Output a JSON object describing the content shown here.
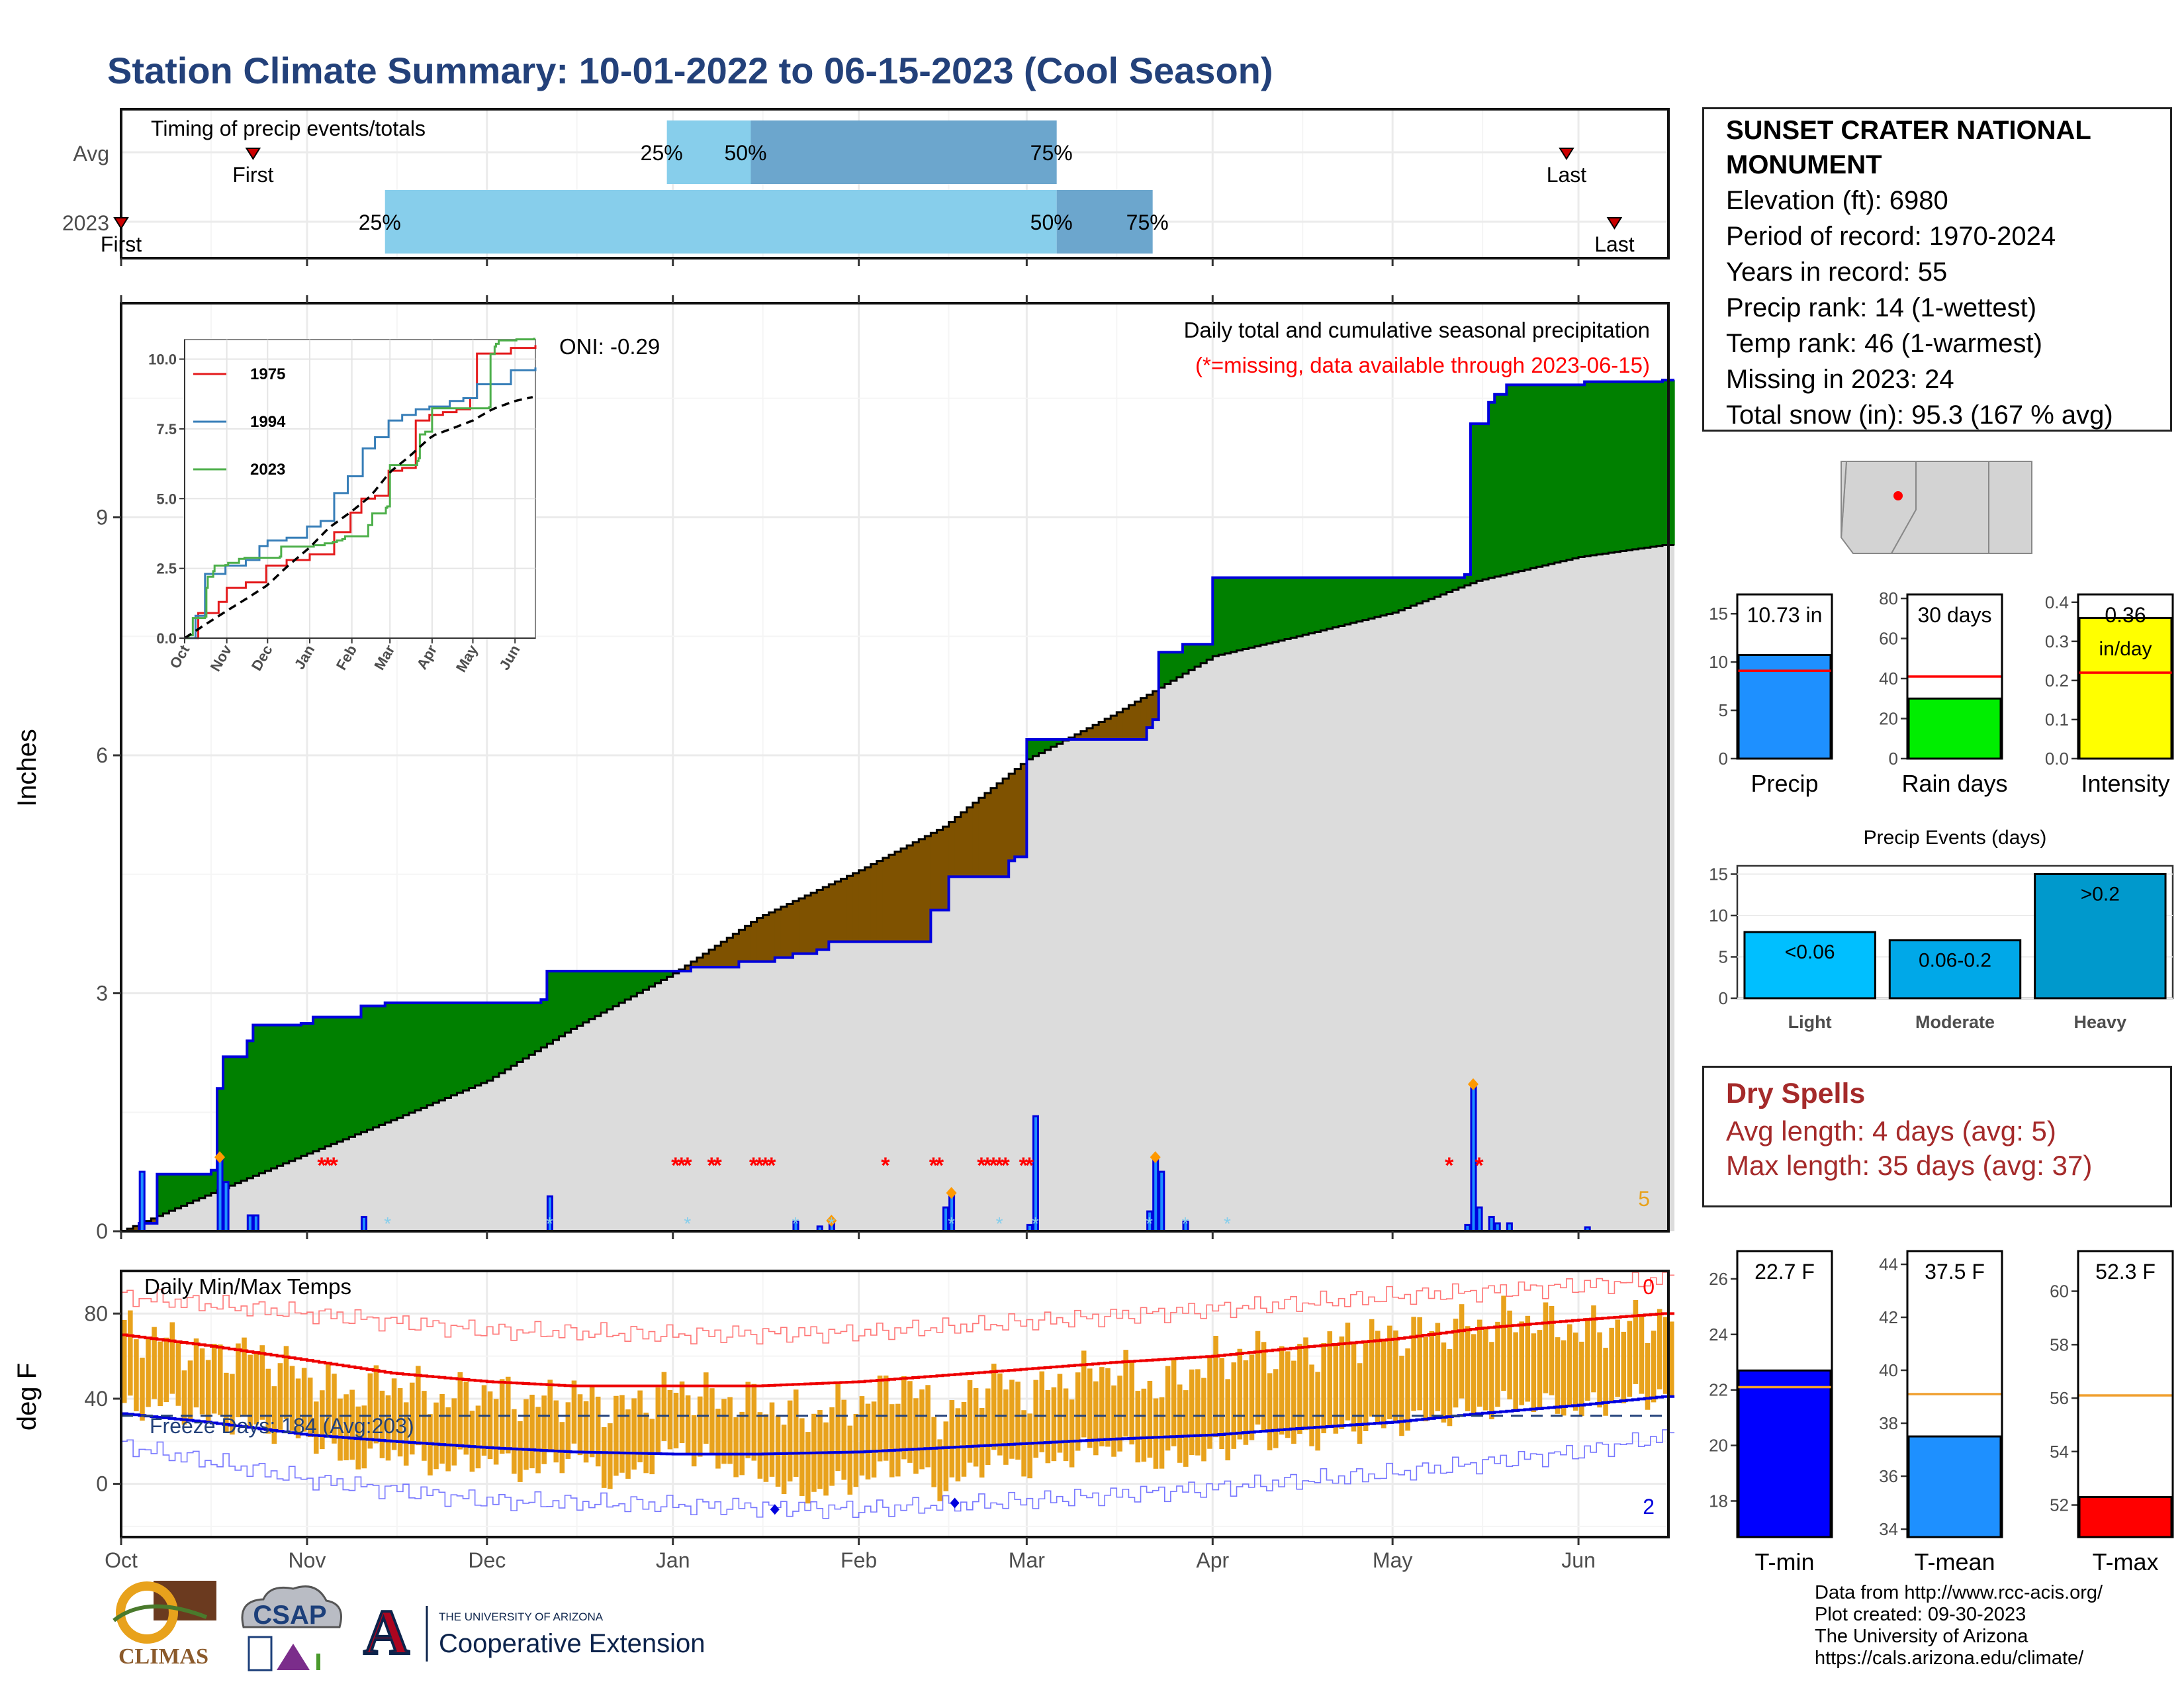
{
  "title": "Station Climate Summary: 10-01-2022 to 06-15-2023 (Cool Season)",
  "timing": {
    "label": "Timing of precip events/totals",
    "rows": [
      {
        "name": "Avg",
        "first_label": "First",
        "last_label": "Last",
        "q25": "25%",
        "q50": "50%",
        "q75": "75%"
      },
      {
        "name": "2023",
        "first_label": "First",
        "last_label": "Last",
        "q25": "25%",
        "q50": "50%",
        "q75": "75%"
      }
    ]
  },
  "station": {
    "name_line1": "SUNSET CRATER NATIONAL",
    "name_line2": "MONUMENT",
    "elevation": "Elevation (ft): 6980",
    "period": "Period of record: 1970-2024",
    "years": "Years in record: 55",
    "precip_rank": "Precip rank: 14 (1-wettest)",
    "temp_rank": "Temp rank: 46 (1-warmest)",
    "missing": "Missing in 2023: 24",
    "snow": "Total snow (in): 95.3 (167 % avg)"
  },
  "precip_panel": {
    "ylabel": "Inches",
    "title": "Daily total and cumulative seasonal precipitation",
    "missing_note": "(*=missing, data available through 2023-06-15)",
    "oni": "ONI: -0.29",
    "corner_count": "5",
    "yticks": [
      "0",
      "3",
      "6",
      "9"
    ]
  },
  "temp_panel": {
    "ylabel": "deg F",
    "title": "Daily Min/Max Temps",
    "freeze": "Freeze Days: 184 (Avg:203)",
    "top_count": "0",
    "bottom_count": "2",
    "yticks": [
      "0",
      "40",
      "80"
    ]
  },
  "months": [
    "Oct",
    "Nov",
    "Dec",
    "Jan",
    "Feb",
    "Mar",
    "Apr",
    "May",
    "Jun"
  ],
  "inset": {
    "yticks": [
      "0.0",
      "2.5",
      "5.0",
      "7.5",
      "10.0"
    ],
    "xticks": [
      "Oct",
      "Nov",
      "Dec",
      "Jan",
      "Feb",
      "Mar",
      "Apr",
      "May",
      "Jun"
    ],
    "legend": [
      "1975",
      "1994",
      "2023"
    ]
  },
  "mini_bars": [
    {
      "label": "Precip",
      "value_text": "10.73 in",
      "yticks": [
        "0",
        "5",
        "10",
        "15"
      ]
    },
    {
      "label": "Rain days",
      "value_text": "30 days",
      "yticks": [
        "0",
        "20",
        "40",
        "60",
        "80"
      ]
    },
    {
      "label": "Intensity",
      "value_text": "0.36",
      "value_unit": "in/day",
      "yticks": [
        "0.0",
        "0.1",
        "0.2",
        "0.3",
        "0.4"
      ]
    }
  ],
  "events": {
    "title": "Precip Events (days)",
    "yticks": [
      "0",
      "5",
      "10",
      "15"
    ],
    "bars": [
      {
        "category": "Light",
        "label": "<0.06"
      },
      {
        "category": "Moderate",
        "label": "0.06-0.2"
      },
      {
        "category": "Heavy",
        "label": ">0.2"
      }
    ]
  },
  "dry": {
    "title": "Dry Spells",
    "avg": "Avg length: 4 days (avg: 5)",
    "max": "Max length: 35 days (avg: 37)"
  },
  "temp_bars": [
    {
      "label": "T-min",
      "value_text": "22.7 F",
      "yticks": [
        "18",
        "20",
        "22",
        "24",
        "26"
      ]
    },
    {
      "label": "T-mean",
      "value_text": "37.5 F",
      "yticks": [
        "34",
        "36",
        "38",
        "40",
        "42",
        "44"
      ]
    },
    {
      "label": "T-max",
      "value_text": "52.3 F",
      "yticks": [
        "52",
        "54",
        "56",
        "58",
        "60"
      ]
    }
  ],
  "credits": {
    "l1": "Data from http://www.rcc-acis.org/",
    "l2": "Plot created: 09-30-2023",
    "l3": "The University of Arizona",
    "l4": "https://cals.arizona.edu/climate/"
  },
  "logos": {
    "climas": "CLIMAS",
    "csap": "CSAP",
    "ua_small": "THE UNIVERSITY OF ARIZONA",
    "ua_big": "Cooperative Extension"
  },
  "colors": {
    "title": "#23417a",
    "green": "#008000",
    "brown": "#7f5200",
    "gray": "#dcdcdc",
    "blue": "#0000dd",
    "orange": "#e8a21c",
    "red": "#ff0000",
    "precip_bar": "#1e90ff",
    "raindays_bar": "#00ee00",
    "intensity_bar": "#ffff00",
    "event_light": "#00bfff",
    "event_moderate": "#00a8e8",
    "event_heavy": "#0099cc",
    "timing_light": "#87ceeb",
    "timing_dark": "#6ca6cd"
  },
  "chart_data": [
    {
      "type": "bar",
      "title": "Timing of precip events/totals",
      "categories": [
        "Avg",
        "2023"
      ],
      "series": [
        {
          "name": "First",
          "values": [
            "2022-10-23",
            "2022-10-01"
          ]
        },
        {
          "name": "25%",
          "values": [
            "2022-12-31",
            "2022-11-14"
          ]
        },
        {
          "name": "50%",
          "values": [
            "2023-01-14",
            "2023-03-06"
          ]
        },
        {
          "name": "75%",
          "values": [
            "2023-03-06",
            "2023-03-22"
          ]
        },
        {
          "name": "Last",
          "values": [
            "2023-05-30",
            "2023-06-07"
          ]
        }
      ]
    },
    {
      "type": "area",
      "title": "Daily total and cumulative seasonal precipitation",
      "ylabel": "Inches",
      "ylim": [
        0,
        11.7
      ],
      "xlim": [
        "2022-10-01",
        "2023-06-15"
      ],
      "cumulative_2023": [
        [
          "2022-10-01",
          0
        ],
        [
          "2022-10-04",
          0.1
        ],
        [
          "2022-10-07",
          0.72
        ],
        [
          "2022-10-16",
          0.77
        ],
        [
          "2022-10-17",
          1.8
        ],
        [
          "2022-10-18",
          2.2
        ],
        [
          "2022-10-22",
          2.4
        ],
        [
          "2022-10-23",
          2.6
        ],
        [
          "2022-10-31",
          2.62
        ],
        [
          "2022-11-02",
          2.7
        ],
        [
          "2022-11-10",
          2.84
        ],
        [
          "2022-11-14",
          2.88
        ],
        [
          "2022-12-10",
          2.92
        ],
        [
          "2022-12-11",
          3.28
        ],
        [
          "2023-01-04",
          3.33
        ],
        [
          "2023-01-12",
          3.4
        ],
        [
          "2023-01-18",
          3.45
        ],
        [
          "2023-01-21",
          3.5
        ],
        [
          "2023-01-25",
          3.55
        ],
        [
          "2023-01-27",
          3.65
        ],
        [
          "2023-02-13",
          4.05
        ],
        [
          "2023-02-16",
          4.47
        ],
        [
          "2023-02-26",
          4.67
        ],
        [
          "2023-02-27",
          4.72
        ],
        [
          "2023-03-01",
          6.2
        ],
        [
          "2023-03-21",
          6.35
        ],
        [
          "2023-03-22",
          6.45
        ],
        [
          "2023-03-23",
          7.3
        ],
        [
          "2023-03-27",
          7.4
        ],
        [
          "2023-04-01",
          8.24
        ],
        [
          "2023-05-13",
          8.28
        ],
        [
          "2023-05-14",
          10.18
        ],
        [
          "2023-05-17",
          10.45
        ],
        [
          "2023-05-18",
          10.55
        ],
        [
          "2023-05-20",
          10.67
        ],
        [
          "2023-06-02",
          10.71
        ],
        [
          "2023-06-15",
          10.73
        ]
      ],
      "cumulative_avg": [
        [
          "2022-10-01",
          0
        ],
        [
          "2022-10-15",
          0.45
        ],
        [
          "2022-11-01",
          0.98
        ],
        [
          "2022-11-15",
          1.4
        ],
        [
          "2022-12-01",
          1.9
        ],
        [
          "2022-12-15",
          2.55
        ],
        [
          "2023-01-01",
          3.25
        ],
        [
          "2023-01-15",
          3.95
        ],
        [
          "2023-02-01",
          4.55
        ],
        [
          "2023-02-15",
          5.1
        ],
        [
          "2023-03-01",
          5.95
        ],
        [
          "2023-03-15",
          6.5
        ],
        [
          "2023-04-01",
          7.25
        ],
        [
          "2023-04-15",
          7.5
        ],
        [
          "2023-05-01",
          7.8
        ],
        [
          "2023-05-15",
          8.2
        ],
        [
          "2023-06-01",
          8.5
        ],
        [
          "2023-06-15",
          8.65
        ]
      ],
      "daily_bars": [
        [
          "2022-10-04",
          0.75
        ],
        [
          "2022-10-17",
          0.9
        ],
        [
          "2022-10-18",
          0.62
        ],
        [
          "2022-10-22",
          0.2
        ],
        [
          "2022-10-23",
          0.2
        ],
        [
          "2022-11-10",
          0.18
        ],
        [
          "2022-12-11",
          0.44
        ],
        [
          "2023-01-21",
          0.12
        ],
        [
          "2023-01-25",
          0.06
        ],
        [
          "2023-01-27",
          0.1
        ],
        [
          "2023-02-15",
          0.3
        ],
        [
          "2023-02-16",
          0.45
        ],
        [
          "2023-03-01",
          0.08
        ],
        [
          "2023-03-02",
          1.45
        ],
        [
          "2023-03-21",
          0.25
        ],
        [
          "2023-03-22",
          0.9
        ],
        [
          "2023-03-23",
          0.75
        ],
        [
          "2023-03-27",
          0.12
        ],
        [
          "2023-05-13",
          0.08
        ],
        [
          "2023-05-14",
          1.82
        ],
        [
          "2023-05-15",
          0.3
        ],
        [
          "2023-05-17",
          0.18
        ],
        [
          "2023-05-18",
          0.1
        ],
        [
          "2023-05-20",
          0.1
        ],
        [
          "2023-06-02",
          0.05
        ]
      ],
      "snow_days": [
        "2022-10-17",
        "2023-01-27",
        "2023-02-16",
        "2023-03-22",
        "2023-05-14"
      ],
      "missing_days": [
        "2022-11-03",
        "2022-11-04",
        "2022-11-05",
        "2023-01-01",
        "2023-01-02",
        "2023-01-03",
        "2023-01-07",
        "2023-01-08",
        "2023-01-14",
        "2023-01-15",
        "2023-01-16",
        "2023-01-17",
        "2023-02-05",
        "2023-02-13",
        "2023-02-14",
        "2023-02-21",
        "2023-02-22",
        "2023-02-23",
        "2023-02-24",
        "2023-02-25",
        "2023-02-28",
        "2023-03-01",
        "2023-05-10",
        "2023-05-15"
      ]
    },
    {
      "type": "line",
      "title": "Daily Min/Max Temps",
      "ylabel": "deg F",
      "ylim": [
        -25,
        100
      ],
      "freeze_threshold": 32,
      "avg_tmax": [
        [
          "2022-10-01",
          70
        ],
        [
          "2022-10-15",
          65
        ],
        [
          "2022-11-01",
          58
        ],
        [
          "2022-11-15",
          52
        ],
        [
          "2022-12-01",
          48
        ],
        [
          "2022-12-15",
          46
        ],
        [
          "2023-01-01",
          46
        ],
        [
          "2023-01-15",
          46
        ],
        [
          "2023-02-01",
          48
        ],
        [
          "2023-02-15",
          51
        ],
        [
          "2023-03-01",
          54
        ],
        [
          "2023-03-15",
          57
        ],
        [
          "2023-04-01",
          60
        ],
        [
          "2023-04-15",
          64
        ],
        [
          "2023-05-01",
          68
        ],
        [
          "2023-05-15",
          73
        ],
        [
          "2023-06-01",
          77
        ],
        [
          "2023-06-15",
          80
        ]
      ],
      "avg_tmin": [
        [
          "2022-10-01",
          33
        ],
        [
          "2022-10-15",
          29
        ],
        [
          "2022-11-01",
          23
        ],
        [
          "2022-11-15",
          20
        ],
        [
          "2022-12-01",
          17
        ],
        [
          "2022-12-15",
          15
        ],
        [
          "2023-01-01",
          14
        ],
        [
          "2023-01-15",
          14
        ],
        [
          "2023-02-01",
          15
        ],
        [
          "2023-02-15",
          17
        ],
        [
          "2023-03-01",
          19
        ],
        [
          "2023-03-15",
          21
        ],
        [
          "2023-04-01",
          23
        ],
        [
          "2023-04-15",
          26
        ],
        [
          "2023-05-01",
          29
        ],
        [
          "2023-05-15",
          33
        ],
        [
          "2023-06-01",
          37
        ],
        [
          "2023-06-15",
          41
        ]
      ],
      "record_high": [
        [
          "2022-10-01",
          88
        ],
        [
          "2022-11-01",
          80
        ],
        [
          "2022-12-01",
          72
        ],
        [
          "2023-01-01",
          70
        ],
        [
          "2023-02-01",
          71
        ],
        [
          "2023-03-01",
          76
        ],
        [
          "2023-04-01",
          82
        ],
        [
          "2023-05-01",
          88
        ],
        [
          "2023-06-01",
          93
        ],
        [
          "2023-06-15",
          96
        ]
      ],
      "record_low": [
        [
          "2022-10-01",
          18
        ],
        [
          "2022-11-01",
          2
        ],
        [
          "2022-12-01",
          -8
        ],
        [
          "2023-01-01",
          -10
        ],
        [
          "2023-02-01",
          -12
        ],
        [
          "2023-03-01",
          -8
        ],
        [
          "2023-04-01",
          -2
        ],
        [
          "2023-05-01",
          5
        ],
        [
          "2023-06-01",
          15
        ],
        [
          "2023-06-15",
          22
        ]
      ],
      "daily_range_2023": [
        [
          "2022-10-01",
          35,
          72
        ],
        [
          "2022-10-08",
          38,
          68
        ],
        [
          "2022-10-15",
          30,
          60
        ],
        [
          "2022-10-22",
          28,
          62
        ],
        [
          "2022-11-01",
          22,
          50
        ],
        [
          "2022-11-08",
          10,
          42
        ],
        [
          "2022-11-15",
          15,
          48
        ],
        [
          "2022-11-22",
          8,
          40
        ],
        [
          "2022-12-01",
          12,
          44
        ],
        [
          "2022-12-08",
          5,
          38
        ],
        [
          "2022-12-15",
          15,
          42
        ],
        [
          "2022-12-22",
          0,
          35
        ],
        [
          "2023-01-01",
          18,
          45
        ],
        [
          "2023-01-08",
          10,
          40
        ],
        [
          "2023-01-15",
          5,
          38
        ],
        [
          "2023-01-22",
          -5,
          32
        ],
        [
          "2023-02-01",
          2,
          38
        ],
        [
          "2023-02-08",
          10,
          48
        ],
        [
          "2023-02-15",
          -3,
          30
        ],
        [
          "2023-02-22",
          12,
          50
        ],
        [
          "2023-03-01",
          8,
          42
        ],
        [
          "2023-03-08",
          14,
          50
        ],
        [
          "2023-03-15",
          18,
          55
        ],
        [
          "2023-03-22",
          10,
          45
        ],
        [
          "2023-04-01",
          15,
          58
        ],
        [
          "2023-04-08",
          22,
          62
        ],
        [
          "2023-04-15",
          20,
          60
        ],
        [
          "2023-04-22",
          25,
          68
        ],
        [
          "2023-05-01",
          28,
          70
        ],
        [
          "2023-05-08",
          32,
          72
        ],
        [
          "2023-05-15",
          35,
          75
        ],
        [
          "2023-05-22",
          38,
          78
        ],
        [
          "2023-06-01",
          35,
          72
        ],
        [
          "2023-06-08",
          40,
          75
        ],
        [
          "2023-06-15",
          42,
          78
        ]
      ]
    },
    {
      "type": "bar",
      "categories": [
        "Precip"
      ],
      "values": [
        10.73
      ],
      "reference": 9.1,
      "ylim": [
        0,
        17
      ]
    },
    {
      "type": "bar",
      "categories": [
        "Rain days"
      ],
      "values": [
        30
      ],
      "reference": 41,
      "ylim": [
        0,
        82
      ]
    },
    {
      "type": "bar",
      "categories": [
        "Intensity"
      ],
      "values": [
        0.36
      ],
      "reference": 0.22,
      "ylim": [
        0,
        0.42
      ]
    },
    {
      "type": "bar",
      "title": "Precip Events (days)",
      "categories": [
        "Light",
        "Moderate",
        "Heavy"
      ],
      "values": [
        8,
        7,
        15
      ],
      "ylim": [
        0,
        16
      ]
    },
    {
      "type": "bar",
      "categories": [
        "T-min"
      ],
      "values": [
        22.7
      ],
      "reference": 22.1,
      "ylim": [
        16.7,
        27
      ]
    },
    {
      "type": "bar",
      "categories": [
        "T-mean"
      ],
      "values": [
        37.5
      ],
      "reference": 39.1,
      "ylim": [
        33.7,
        44.5
      ]
    },
    {
      "type": "bar",
      "categories": [
        "T-max"
      ],
      "values": [
        52.3
      ],
      "reference": 56.1,
      "ylim": [
        50.8,
        61.5
      ]
    }
  ]
}
